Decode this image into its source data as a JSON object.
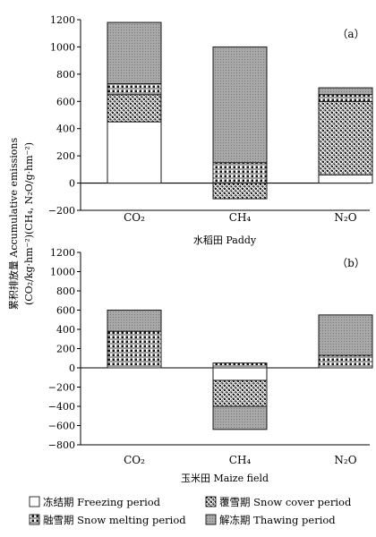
{
  "figure": {
    "ylabel_line1": "累积排放量 Accumulative emissions",
    "ylabel_line2": "(CO₂/kg·hm⁻²)(CH₄, N₂O/g·hm⁻²)"
  },
  "colors": {
    "frozen": "#ffffff",
    "snow_cover": "#9a9a9a",
    "snow_melting": "#3a3a3a",
    "thawing": "#a6a6a6",
    "stroke": "#1a1a1a"
  },
  "chart_data": [
    {
      "type": "bar",
      "stacked": true,
      "panel_label": "（a）",
      "subtitle": "水稻田 Paddy",
      "categories": [
        "CO₂",
        "CH₄",
        "N₂O"
      ],
      "ylim": [
        -200,
        1200
      ],
      "yticks": [
        -200,
        0,
        200,
        400,
        600,
        800,
        1000,
        1200
      ],
      "series": [
        {
          "name": "冻结期 Freezing period",
          "values": [
            450,
            0,
            60
          ]
        },
        {
          "name": "覆雪期 Snow cover period",
          "values": [
            200,
            -115,
            540
          ]
        },
        {
          "name": "融雪期 Snow melting period",
          "values": [
            80,
            150,
            50
          ]
        },
        {
          "name": "解冻期 Thawing period",
          "values": [
            450,
            850,
            50
          ]
        }
      ]
    },
    {
      "type": "bar",
      "stacked": true,
      "panel_label": "（b）",
      "subtitle": "玉米田 Maize field",
      "categories": [
        "CO₂",
        "CH₄",
        "N₂O"
      ],
      "ylim": [
        -800,
        1200
      ],
      "yticks": [
        -800,
        -600,
        -400,
        -200,
        0,
        200,
        400,
        600,
        800,
        1000,
        1200
      ],
      "series": [
        {
          "name": "冻结期 Freezing period",
          "values": [
            0,
            -130,
            0
          ]
        },
        {
          "name": "覆雪期 Snow cover period",
          "values": [
            0,
            -270,
            0
          ]
        },
        {
          "name": "融雪期 Snow melting period",
          "values": [
            380,
            50,
            130
          ]
        },
        {
          "name": "解冻期 Thawing period",
          "values": [
            220,
            -240,
            420
          ]
        }
      ]
    }
  ],
  "legend": [
    {
      "label": "冻结期 Freezing period",
      "key": "frozen"
    },
    {
      "label": "覆雪期 Snow cover period",
      "key": "snow_cover"
    },
    {
      "label": "融雪期 Snow melting period",
      "key": "snow_melting"
    },
    {
      "label": "解冻期 Thawing period",
      "key": "thawing"
    }
  ]
}
